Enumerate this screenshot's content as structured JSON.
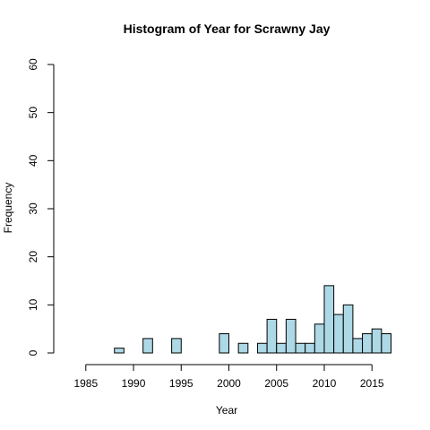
{
  "chart_data": {
    "type": "bar",
    "title": "Histogram of Year for Scrawny Jay",
    "xlabel": "Year",
    "ylabel": "Frequency",
    "xlim": [
      1983,
      2017
    ],
    "ylim": [
      0,
      60
    ],
    "xticks": [
      1985,
      1990,
      1995,
      2000,
      2005,
      2010,
      2015
    ],
    "yticks": [
      0,
      10,
      20,
      30,
      40,
      50,
      60
    ],
    "bin_width": 1,
    "bins": [
      {
        "start": 1983,
        "end": 1984,
        "value": 0
      },
      {
        "start": 1984,
        "end": 1985,
        "value": 0
      },
      {
        "start": 1985,
        "end": 1986,
        "value": 0
      },
      {
        "start": 1986,
        "end": 1987,
        "value": 0
      },
      {
        "start": 1987,
        "end": 1988,
        "value": 0
      },
      {
        "start": 1988,
        "end": 1989,
        "value": 1
      },
      {
        "start": 1989,
        "end": 1990,
        "value": 0
      },
      {
        "start": 1990,
        "end": 1991,
        "value": 0
      },
      {
        "start": 1991,
        "end": 1992,
        "value": 3
      },
      {
        "start": 1992,
        "end": 1993,
        "value": 0
      },
      {
        "start": 1993,
        "end": 1994,
        "value": 0
      },
      {
        "start": 1994,
        "end": 1995,
        "value": 3
      },
      {
        "start": 1995,
        "end": 1996,
        "value": 0
      },
      {
        "start": 1996,
        "end": 1997,
        "value": 0
      },
      {
        "start": 1997,
        "end": 1998,
        "value": 0
      },
      {
        "start": 1998,
        "end": 1999,
        "value": 0
      },
      {
        "start": 1999,
        "end": 2000,
        "value": 4
      },
      {
        "start": 2000,
        "end": 2001,
        "value": 0
      },
      {
        "start": 2001,
        "end": 2002,
        "value": 2
      },
      {
        "start": 2002,
        "end": 2003,
        "value": 0
      },
      {
        "start": 2003,
        "end": 2004,
        "value": 2
      },
      {
        "start": 2004,
        "end": 2005,
        "value": 7
      },
      {
        "start": 2005,
        "end": 2006,
        "value": 2
      },
      {
        "start": 2006,
        "end": 2007,
        "value": 7
      },
      {
        "start": 2007,
        "end": 2008,
        "value": 2
      },
      {
        "start": 2008,
        "end": 2009,
        "value": 2
      },
      {
        "start": 2009,
        "end": 2010,
        "value": 6
      },
      {
        "start": 2010,
        "end": 2011,
        "value": 14
      },
      {
        "start": 2011,
        "end": 2012,
        "value": 8
      },
      {
        "start": 2012,
        "end": 2013,
        "value": 10
      },
      {
        "start": 2013,
        "end": 2014,
        "value": 3
      },
      {
        "start": 2014,
        "end": 2015,
        "value": 4
      },
      {
        "start": 2015,
        "end": 2016,
        "value": 5
      },
      {
        "start": 2016,
        "end": 2017,
        "value": 4
      }
    ],
    "grid": false,
    "bar_color": "#add8e6",
    "edge_color": "#000000"
  }
}
